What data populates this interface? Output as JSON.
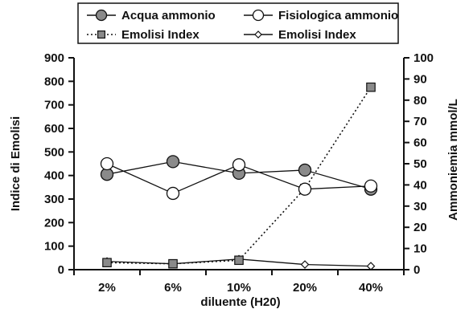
{
  "chart_data": {
    "type": "line",
    "title": "",
    "categories": [
      "2%",
      "6%",
      "10%",
      "20%",
      "40%"
    ],
    "xlabel": "diluente (H20)",
    "ylabel_left": "Indice di Emolisi",
    "ylabel_right": "Ammoniemia mmol/L",
    "ylim_left": [
      0,
      900
    ],
    "ylim_right": [
      0,
      100
    ],
    "yticks_left": [
      0,
      100,
      200,
      300,
      400,
      500,
      600,
      700,
      800,
      900
    ],
    "yticks_right": [
      0,
      10,
      20,
      30,
      40,
      50,
      60,
      70,
      80,
      90,
      100
    ],
    "grid": false,
    "legend_position": "top",
    "series": [
      {
        "name": "Acqua ammonio",
        "axis": "right",
        "marker": "circle-filled",
        "line": "solid",
        "values": [
          45,
          51,
          45.5,
          47,
          38
        ]
      },
      {
        "name": "Fisiologica ammonio",
        "axis": "right",
        "marker": "circle-open",
        "line": "solid",
        "values": [
          50,
          36,
          49.5,
          38,
          39.5
        ]
      },
      {
        "name": "Emolisi Index",
        "axis": "left",
        "marker": "square-filled",
        "line": "dotted",
        "values": [
          30,
          25,
          40,
          345,
          775
        ]
      },
      {
        "name": "Emolisi Index",
        "axis": "left",
        "marker": "diamond-open",
        "line": "solid",
        "values": [
          35,
          25,
          45,
          22,
          15
        ]
      }
    ]
  }
}
